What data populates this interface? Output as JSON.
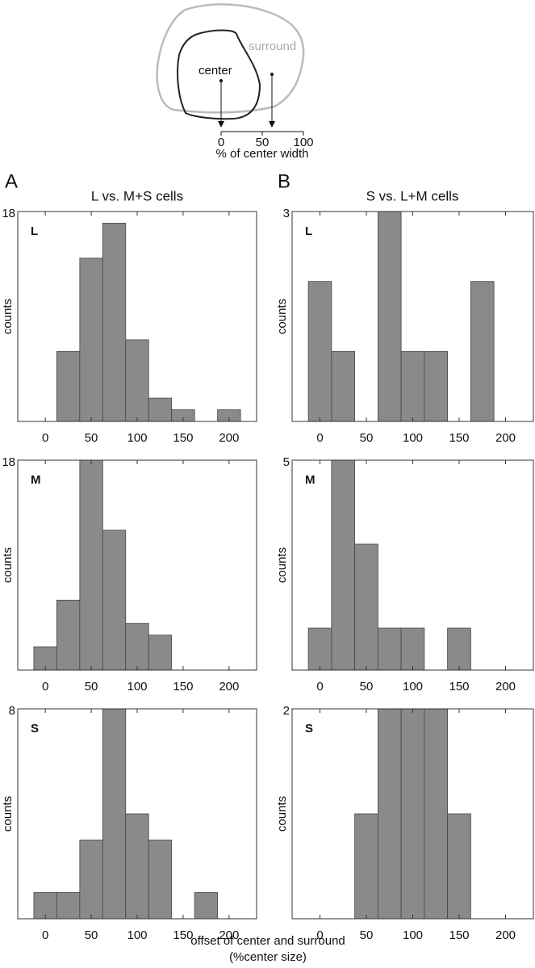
{
  "diagram": {
    "surround": "surround",
    "center": "center",
    "ticks": [
      0,
      50,
      100
    ],
    "axis_label": "% of center width"
  },
  "panels": [
    {
      "letter": "A",
      "title": "L vs. M+S cells"
    },
    {
      "letter": "B",
      "title": "S vs. L+M cells"
    }
  ],
  "xlabel": [
    "offset of center and surround",
    "(%center size)"
  ],
  "chart_data": [
    {
      "type": "histogram",
      "label": "L",
      "ylabel": "counts",
      "bins": [
        12.5,
        37.5,
        62.5,
        87.5,
        112.5,
        137.5,
        162.5,
        187.5,
        212.5
      ],
      "values": [
        6,
        14,
        17,
        7,
        2,
        1,
        0,
        1
      ],
      "xlim": [
        -30,
        230
      ],
      "ylim": [
        0,
        18
      ],
      "yticks": [
        18
      ],
      "xticks": [
        0,
        50,
        100,
        150,
        200
      ],
      "color": "#8a8a8a"
    },
    {
      "type": "histogram",
      "label": "L",
      "ylabel": "counts",
      "bins": [
        -12.5,
        12.5,
        37.5,
        62.5,
        87.5,
        112.5,
        137.5,
        162.5,
        187.5
      ],
      "values": [
        2,
        1,
        0,
        3,
        1,
        1,
        0,
        2
      ],
      "xlim": [
        -30,
        230
      ],
      "ylim": [
        0,
        3
      ],
      "yticks": [
        3
      ],
      "xticks": [
        0,
        50,
        100,
        150,
        200
      ],
      "color": "#8a8a8a"
    },
    {
      "type": "histogram",
      "label": "M",
      "ylabel": "counts",
      "bins": [
        -12.5,
        12.5,
        37.5,
        62.5,
        87.5,
        112.5,
        137.5
      ],
      "values": [
        2,
        6,
        18,
        12,
        4,
        3
      ],
      "xlim": [
        -30,
        230
      ],
      "ylim": [
        0,
        18
      ],
      "yticks": [
        18
      ],
      "xticks": [
        0,
        50,
        100,
        150,
        200
      ],
      "color": "#8a8a8a"
    },
    {
      "type": "histogram",
      "label": "M",
      "ylabel": "counts",
      "bins": [
        -12.5,
        12.5,
        37.5,
        62.5,
        87.5,
        112.5,
        137.5,
        162.5
      ],
      "values": [
        1,
        5,
        3,
        1,
        1,
        0,
        1
      ],
      "xlim": [
        -30,
        230
      ],
      "ylim": [
        0,
        5
      ],
      "yticks": [
        5
      ],
      "xticks": [
        0,
        50,
        100,
        150,
        200
      ],
      "color": "#8a8a8a"
    },
    {
      "type": "histogram",
      "label": "S",
      "ylabel": "counts",
      "bins": [
        -12.5,
        12.5,
        37.5,
        62.5,
        87.5,
        112.5,
        137.5,
        162.5,
        187.5
      ],
      "values": [
        1,
        1,
        3,
        8,
        4,
        3,
        0,
        1
      ],
      "xlim": [
        -30,
        230
      ],
      "ylim": [
        0,
        8
      ],
      "yticks": [
        8
      ],
      "xticks": [
        0,
        50,
        100,
        150,
        200
      ],
      "color": "#8a8a8a"
    },
    {
      "type": "histogram",
      "label": "S",
      "ylabel": "counts",
      "bins": [
        37.5,
        62.5,
        87.5,
        112.5,
        137.5,
        162.5
      ],
      "values": [
        1,
        2,
        2,
        2,
        1
      ],
      "xlim": [
        -30,
        230
      ],
      "ylim": [
        0,
        2
      ],
      "yticks": [
        2
      ],
      "xticks": [
        0,
        50,
        100,
        150,
        200
      ],
      "color": "#8a8a8a"
    }
  ]
}
